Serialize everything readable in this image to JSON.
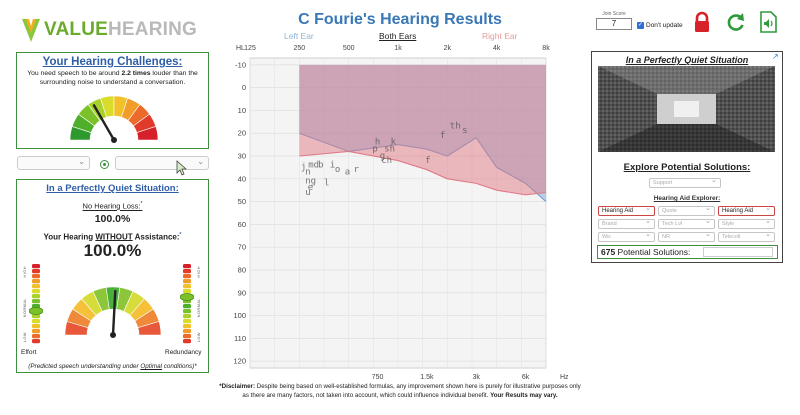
{
  "header": {
    "logo_part1": "VALUE",
    "logo_part2": "HEARING",
    "title": "C Fourie's Hearing Results",
    "tabs": {
      "left": "Left Ear",
      "both": "Both Ears",
      "right": "Right Ear"
    },
    "join_label": "Join Score",
    "join_value": "7",
    "dont_update": "Don't update"
  },
  "challenges": {
    "title": "Your Hearing Challenges:",
    "text_pre": "You need speech to be around ",
    "text_bold": "2.2 times",
    "text_post": " louder than the surrounding noise to understand a conversation."
  },
  "quiet": {
    "title": "In a Perfectly Quiet Situation:",
    "no_loss_label": "No Hearing Loss:",
    "no_loss_star": "*",
    "no_loss_value": "100.0%",
    "without_pre": "Your Hearing ",
    "without_u": "WITHOUT",
    "without_post": " Assistance:",
    "without_star": "*",
    "without_value": "100.0%",
    "left_scale_label": "Effort",
    "right_scale_label": "Redundancy",
    "left_scale_top": "HIGH",
    "left_scale_mid": "NORMAL",
    "left_scale_bot": "LOW",
    "right_scale_top": "HIGH",
    "right_scale_mid": "NORMAL",
    "right_scale_bot": "LOW",
    "footnote_pre": "(Predicted speech understanding under ",
    "footnote_u": "Optimal",
    "footnote_post": " conditions)*"
  },
  "chart_data": {
    "type": "area",
    "top_axis_prefix": "HL",
    "top_ticks": [
      "125",
      "250",
      "500",
      "1k",
      "2k",
      "4k",
      "8k"
    ],
    "bottom_ticks": [
      "750",
      "1.5k",
      "3k",
      "6k"
    ],
    "bottom_unit": "Hz",
    "y_ticks": [
      -10,
      0,
      10,
      20,
      30,
      40,
      50,
      60,
      70,
      80,
      90,
      100,
      110,
      120
    ],
    "ylim": [
      -13,
      123
    ],
    "x_labels_freq": [
      "125",
      "250",
      "500",
      "1k",
      "2k",
      "4k",
      "8k"
    ],
    "speech_banana_top": -10,
    "series": [
      {
        "name": "Left Ear",
        "x": [
          "250",
          "500",
          "1k",
          "1.5k",
          "2k",
          "3k",
          "4k",
          "6k",
          "8k"
        ],
        "values": [
          20,
          28,
          25,
          27,
          30,
          22,
          35,
          42,
          50
        ],
        "color": "#6f9fd0"
      },
      {
        "name": "Right Ear",
        "x": [
          "250",
          "500",
          "1k",
          "1.5k",
          "2k",
          "3k",
          "4k",
          "6k",
          "8k"
        ],
        "values": [
          30,
          28,
          32,
          36,
          40,
          42,
          45,
          47,
          46
        ],
        "color": "#e07a86"
      }
    ],
    "speech_sounds": [
      {
        "t": "m",
        "f": 0.18,
        "db": 35
      },
      {
        "t": "d",
        "f": 0.29,
        "db": 35
      },
      {
        "t": "b",
        "f": 0.38,
        "db": 35
      },
      {
        "t": "j",
        "f": 0.03,
        "db": 36
      },
      {
        "t": "n",
        "f": 0.12,
        "db": 38
      },
      {
        "t": "ng",
        "f": 0.12,
        "db": 42
      },
      {
        "t": "e",
        "f": 0.17,
        "db": 45
      },
      {
        "t": "u",
        "f": 0.12,
        "db": 47
      },
      {
        "t": "l",
        "f": 0.5,
        "db": 43
      },
      {
        "t": "i",
        "f": 0.62,
        "db": 35
      },
      {
        "t": "o",
        "f": 0.72,
        "db": 37
      },
      {
        "t": "a",
        "f": 0.92,
        "db": 38
      },
      {
        "t": "r",
        "f": 1.1,
        "db": 37
      },
      {
        "t": "p",
        "f": 1.48,
        "db": 28
      },
      {
        "t": "h",
        "f": 1.53,
        "db": 25
      },
      {
        "t": "g",
        "f": 1.63,
        "db": 31
      },
      {
        "t": "ch",
        "f": 1.66,
        "db": 33
      },
      {
        "t": "sh",
        "f": 1.72,
        "db": 28
      },
      {
        "t": "k",
        "f": 1.85,
        "db": 25
      },
      {
        "t": "f",
        "f": 2.85,
        "db": 22
      },
      {
        "t": "s",
        "f": 3.3,
        "db": 20
      },
      {
        "t": "th",
        "f": 3.05,
        "db": 18
      },
      {
        "t": "f",
        "f": 2.55,
        "db": 33
      }
    ]
  },
  "disclaimer": {
    "bold_pre": "*Disclaimer:",
    "text": " Despite being based on well-established formulas, any improvement shown here is purely for illustrative purposes only as there are many factors, not taken into account, which could influence individual benefit. ",
    "bold_post": "Your Results may vary."
  },
  "solutions": {
    "title": "In a Perfectly Quiet Situation",
    "explore": "Explore Potential Solutions:",
    "support": "Support",
    "hae": "Hearing Aid Explorer:",
    "selects": [
      [
        "Hearing Aid",
        "Quote",
        "Hearing Aid"
      ],
      [
        "Brand",
        "Tech Lvl",
        "Style"
      ],
      [
        "Wic",
        "NR",
        "Telecoil"
      ]
    ],
    "count": "675",
    "count_label": " Potential Solutions:"
  }
}
